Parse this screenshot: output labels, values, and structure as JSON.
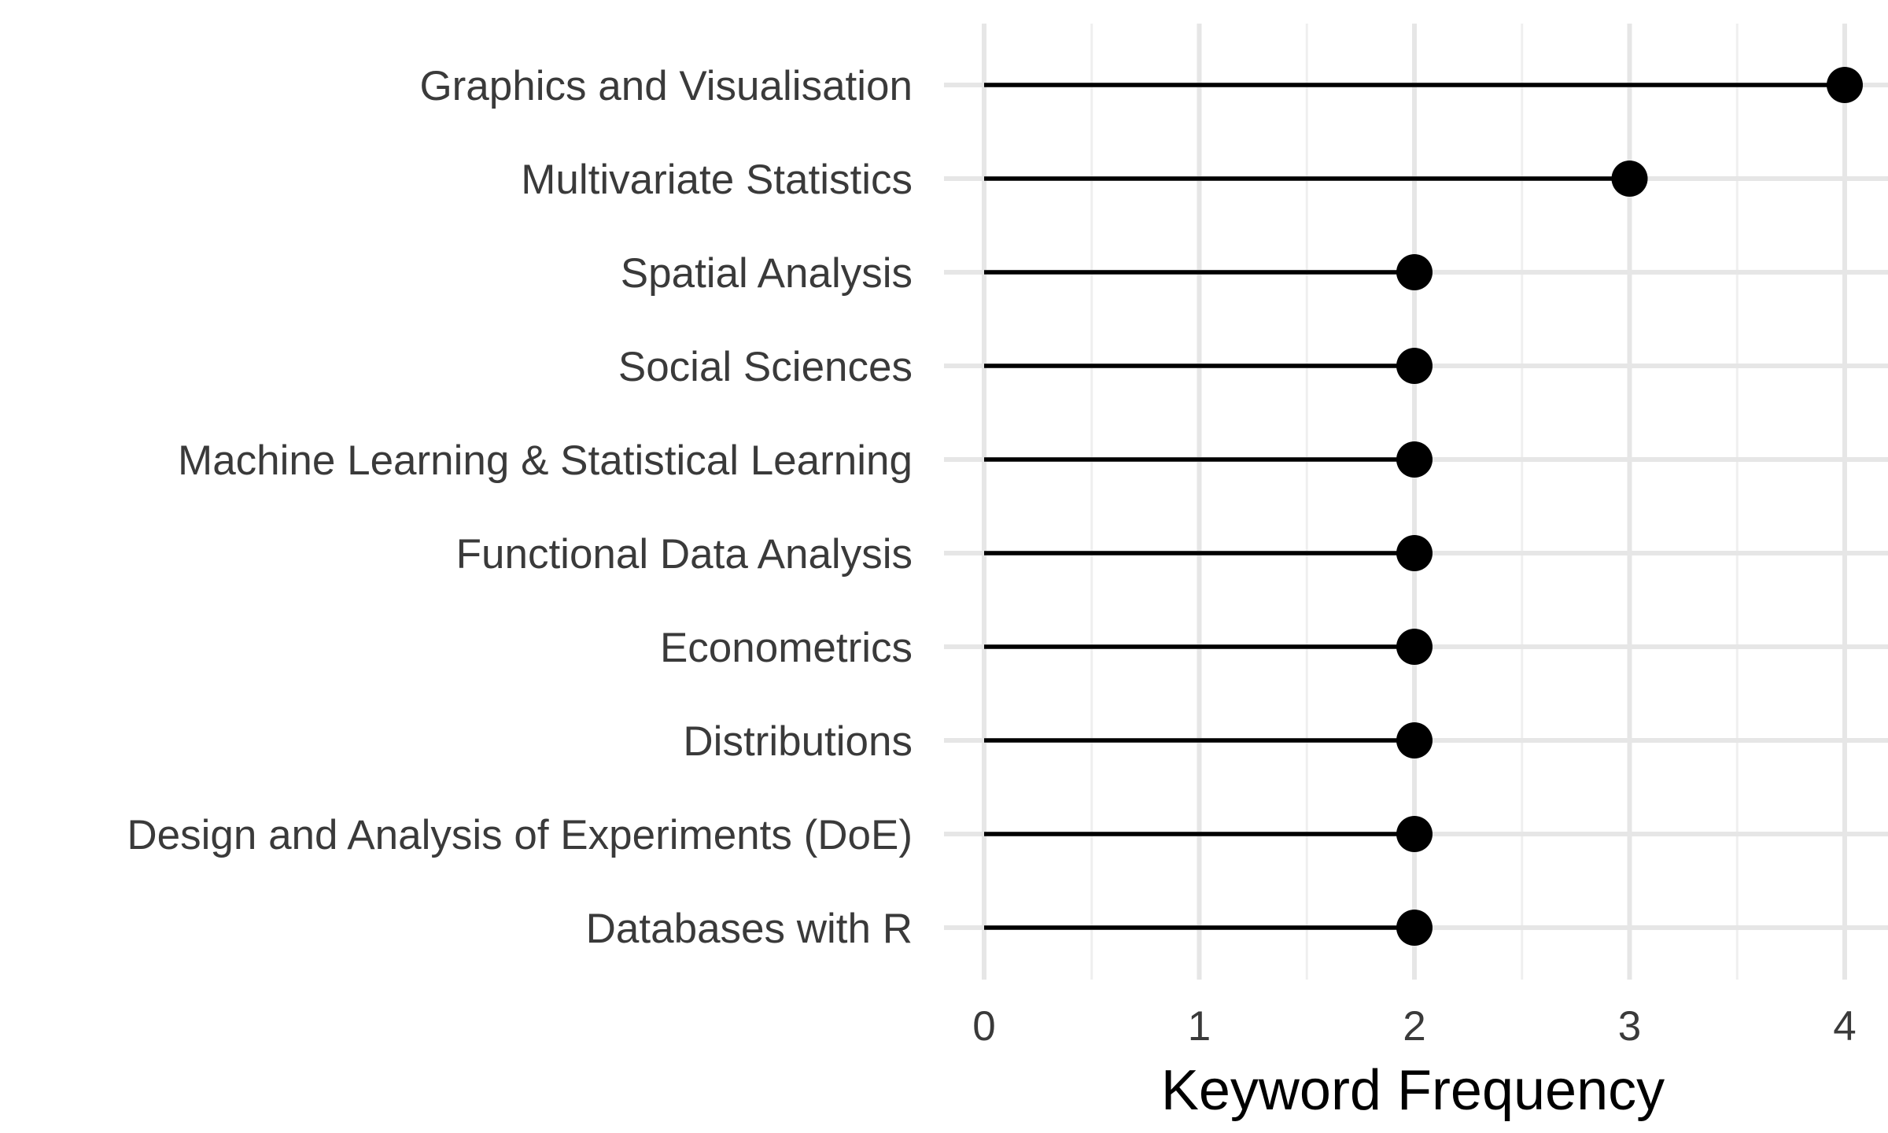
{
  "chart_data": {
    "type": "lollipop",
    "categories": [
      "Graphics and Visualisation",
      "Multivariate Statistics",
      "Spatial Analysis",
      "Social Sciences",
      "Machine Learning & Statistical Learning",
      "Functional Data Analysis",
      "Econometrics",
      "Distributions",
      "Design and Analysis of Experiments (DoE)",
      "Databases with R"
    ],
    "values": [
      4,
      3,
      2,
      2,
      2,
      2,
      2,
      2,
      2,
      2
    ],
    "xlabel": "Keyword Frequency",
    "ylabel": "",
    "xlim": [
      0,
      4
    ],
    "xticks": [
      "0",
      "1",
      "2",
      "3",
      "4"
    ],
    "grid": true,
    "colors": {
      "mark": "#000000",
      "grid_major": "#e6e6e6",
      "grid_minor": "#efefef",
      "label": "#3a3a3a"
    }
  }
}
